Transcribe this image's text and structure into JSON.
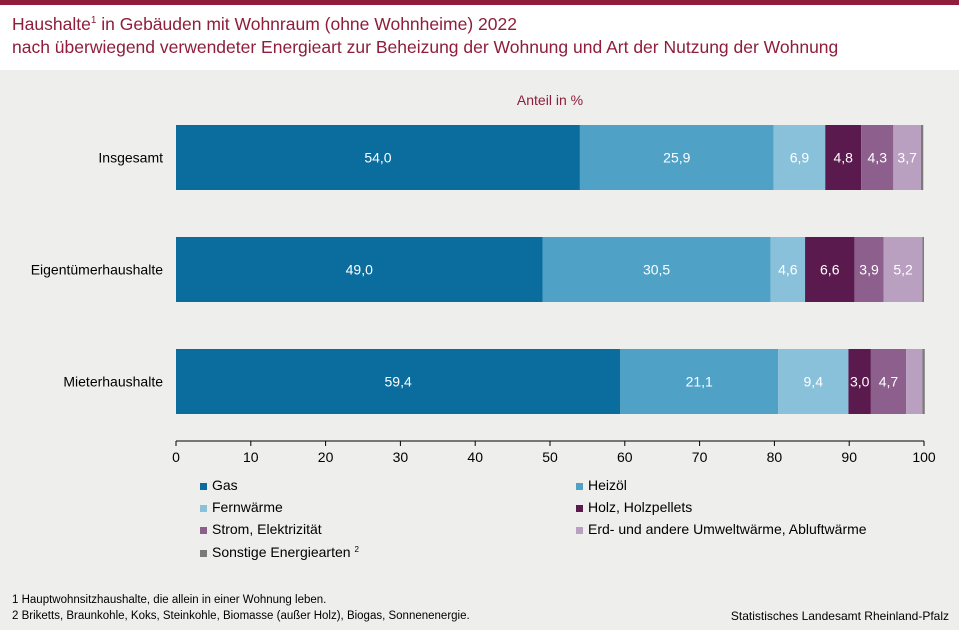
{
  "header": {
    "title_line1_main": "Haushalte",
    "title_line1_sup": "1",
    "title_line1_rest": " in Gebäuden mit Wohnraum (ohne Wohnheime) 2022",
    "title_line2": "nach überwiegend verwendeter Energieart zur Beheizung der Wohnung und Art der Nutzung der Wohnung"
  },
  "colors": {
    "accent": "#8f1d3b",
    "background": "#eeeeec",
    "series": [
      "#0b6d9e",
      "#4fa1c6",
      "#89c1db",
      "#5b1a4e",
      "#8c5f8c",
      "#b9a0c0",
      "#7a7a7a"
    ]
  },
  "chart_data": {
    "type": "bar",
    "orientation": "horizontal",
    "stacked": true,
    "title": "Anteil in %",
    "categories": [
      "Insgesamt",
      "Eigentümerhaushalte",
      "Mieterhaushalte"
    ],
    "series": [
      {
        "name": "Gas",
        "values": [
          54.0,
          49.0,
          59.4
        ],
        "labels": [
          "54,0",
          "49,0",
          "59,4"
        ]
      },
      {
        "name": "Heizöl",
        "values": [
          25.9,
          30.5,
          21.1
        ],
        "labels": [
          "25,9",
          "30,5",
          "21,1"
        ]
      },
      {
        "name": "Fernwärme",
        "values": [
          6.9,
          4.6,
          9.4
        ],
        "labels": [
          "6,9",
          "4,6",
          "9,4"
        ]
      },
      {
        "name": "Holz, Holzpellets",
        "values": [
          4.8,
          6.6,
          3.0
        ],
        "labels": [
          "4,8",
          "6,6",
          "3,0"
        ]
      },
      {
        "name": "Strom, Elektrizität",
        "values": [
          4.3,
          3.9,
          4.7
        ],
        "labels": [
          "4,3",
          "3,9",
          "4,7"
        ]
      },
      {
        "name": "Erd- und andere Umweltwärme, Abluftwärme",
        "values": [
          3.7,
          5.2,
          2.2
        ],
        "labels": [
          "3,7",
          "5,2",
          ""
        ]
      },
      {
        "name": "Sonstige Energiearten",
        "name_sup": "2",
        "values": [
          0.3,
          0.2,
          0.3
        ],
        "labels": [
          "",
          "",
          ""
        ]
      }
    ],
    "xlim": [
      0,
      100
    ],
    "xticks": [
      0,
      10,
      20,
      30,
      40,
      50,
      60,
      70,
      80,
      90,
      100
    ],
    "grid": false,
    "legend_position": "bottom"
  },
  "footnotes": {
    "line1_num": "1",
    "line1_text": "Hauptwohnsitzhaushalte, die allein in einer Wohnung leben.",
    "line2_num": "2",
    "line2_text": "Briketts, Braunkohle, Koks, Steinkohle, Biomasse (außer Holz), Biogas, Sonnenenergie."
  },
  "source": "Statistisches Landesamt Rheinland-Pfalz"
}
